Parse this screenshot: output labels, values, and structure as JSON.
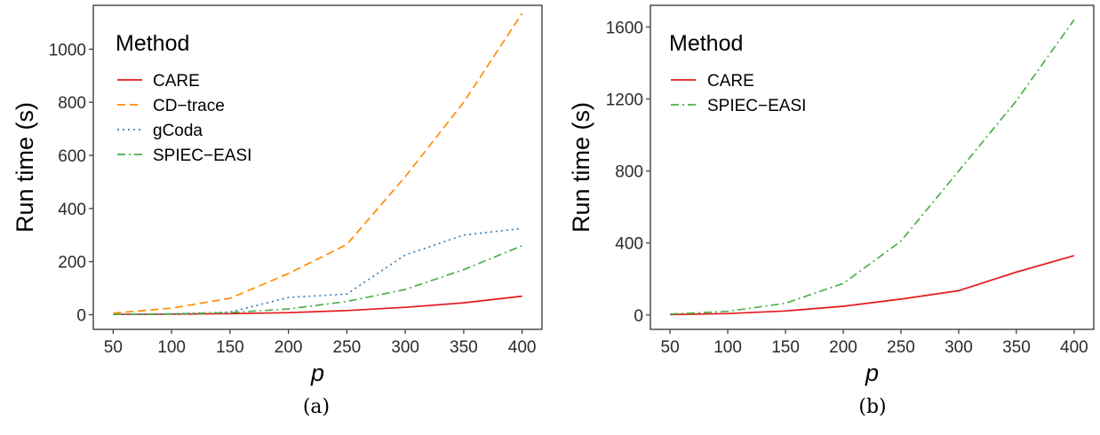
{
  "chart_data": [
    {
      "type": "line",
      "caption": "(a)",
      "xlabel": "p",
      "ylabel": "Run time (s)",
      "x": [
        50,
        100,
        150,
        200,
        250,
        300,
        350,
        400
      ],
      "xlim": [
        33,
        417
      ],
      "ylim": [
        -55,
        1165
      ],
      "xticks": [
        50,
        100,
        150,
        200,
        250,
        300,
        350,
        400
      ],
      "yticks": [
        0,
        200,
        400,
        600,
        800,
        1000
      ],
      "legend": {
        "title": "Method",
        "position": "top-left"
      },
      "series": [
        {
          "name": "CARE",
          "color": "#e41a1c",
          "dash": "solid",
          "values": [
            1,
            2,
            4,
            8,
            16,
            28,
            45,
            70
          ]
        },
        {
          "name": "CD−trace",
          "color": "#ff8c00",
          "dash": "dashed",
          "values": [
            6,
            25,
            62,
            155,
            265,
            520,
            800,
            1135
          ]
        },
        {
          "name": "gCoda",
          "color": "#377eb8",
          "dash": "dotted",
          "values": [
            1,
            3,
            10,
            65,
            78,
            225,
            300,
            325
          ]
        },
        {
          "name": "SPIEC−EASI",
          "color": "#4daf4a",
          "dash": "dotdash",
          "values": [
            1,
            3,
            8,
            22,
            50,
            95,
            170,
            260
          ]
        }
      ]
    },
    {
      "type": "line",
      "caption": "(b)",
      "xlabel": "p",
      "ylabel": "Run time (s)",
      "x": [
        50,
        100,
        150,
        200,
        250,
        300,
        350,
        400
      ],
      "xlim": [
        33,
        417
      ],
      "ylim": [
        -80,
        1720
      ],
      "xticks": [
        50,
        100,
        150,
        200,
        250,
        300,
        350,
        400
      ],
      "yticks": [
        0,
        400,
        800,
        1200,
        1600
      ],
      "legend": {
        "title": "Method",
        "position": "top-left"
      },
      "series": [
        {
          "name": "CARE",
          "color": "#e41a1c",
          "dash": "solid",
          "values": [
            2,
            8,
            22,
            48,
            88,
            135,
            238,
            330
          ]
        },
        {
          "name": "SPIEC−EASI",
          "color": "#4daf4a",
          "dash": "dotdash",
          "values": [
            5,
            20,
            65,
            175,
            410,
            800,
            1190,
            1640
          ]
        }
      ]
    }
  ]
}
